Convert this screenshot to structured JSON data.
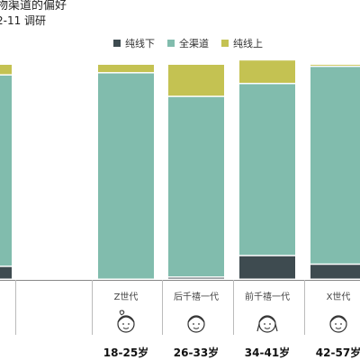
{
  "title": "物渠道的偏好",
  "subtitle": "2-11 调研",
  "colors": {
    "offline": "#3e4b50",
    "omni": "#81bcad",
    "online": "#c4c252"
  },
  "chart_data": {
    "type": "bar",
    "stacked": true,
    "legend": [
      "纯线下",
      "全渠道",
      "纯线上"
    ],
    "legend_position": "top",
    "categories": [
      "",
      "Z世代",
      "后千禧一代",
      "前千禧一代",
      "X世代"
    ],
    "age_groups": [
      "",
      "18-25岁",
      "26-33岁",
      "34-41岁",
      "42-57岁"
    ],
    "series": [
      {
        "name": "纯线下",
        "values": [
          6,
          0,
          1,
          11,
          7
        ]
      },
      {
        "name": "全渠道",
        "values": [
          89,
          96,
          84,
          80,
          92
        ]
      },
      {
        "name": "纯线上",
        "values": [
          5,
          4,
          15,
          11,
          1
        ]
      }
    ],
    "ylim": [
      0,
      100
    ],
    "grid": false
  }
}
